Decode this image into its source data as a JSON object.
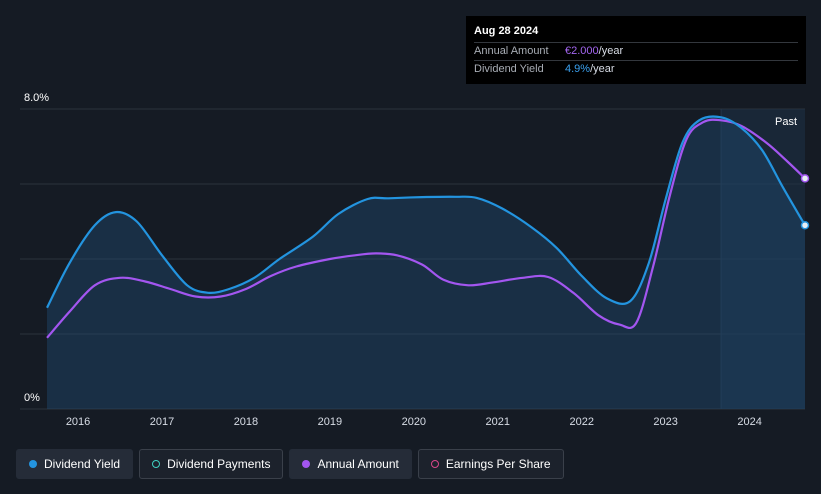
{
  "tooltip": {
    "date": "Aug 28 2024",
    "rows": [
      {
        "label": "Annual Amount",
        "value": "€2.000",
        "unit": "/year"
      },
      {
        "label": "Dividend Yield",
        "value": "4.9%",
        "unit": "/year"
      }
    ]
  },
  "legend": [
    {
      "label": "Dividend Yield",
      "marker": "filled",
      "color": "#2394df"
    },
    {
      "label": "Dividend Payments",
      "marker": "ring",
      "color": "#3fd1c1"
    },
    {
      "label": "Annual Amount",
      "marker": "filled",
      "color": "#a356f0"
    },
    {
      "label": "Earnings Per Share",
      "marker": "ring",
      "color": "#d9468a"
    }
  ],
  "chart_data": {
    "type": "line",
    "ylim": [
      0,
      8
    ],
    "y_tick_labels": [
      "8.0%",
      "0%"
    ],
    "x_tick_labels": [
      "2016",
      "2017",
      "2018",
      "2019",
      "2020",
      "2021",
      "2022",
      "2023",
      "2024"
    ],
    "x_range": [
      2015.63,
      2024.66
    ],
    "past_start": 2023.66,
    "past_label": "Past",
    "grid": true,
    "series": [
      {
        "name": "Dividend Yield",
        "color": "#2394df",
        "points": [
          [
            2015.63,
            2.7
          ],
          [
            2015.9,
            3.9
          ],
          [
            2016.2,
            4.9
          ],
          [
            2016.45,
            5.25
          ],
          [
            2016.7,
            5.0
          ],
          [
            2017.0,
            4.1
          ],
          [
            2017.3,
            3.3
          ],
          [
            2017.55,
            3.1
          ],
          [
            2017.8,
            3.2
          ],
          [
            2018.1,
            3.5
          ],
          [
            2018.4,
            4.0
          ],
          [
            2018.8,
            4.6
          ],
          [
            2019.1,
            5.2
          ],
          [
            2019.45,
            5.6
          ],
          [
            2019.7,
            5.62
          ],
          [
            2020.1,
            5.65
          ],
          [
            2020.5,
            5.66
          ],
          [
            2020.75,
            5.63
          ],
          [
            2021.05,
            5.35
          ],
          [
            2021.4,
            4.85
          ],
          [
            2021.7,
            4.3
          ],
          [
            2022.0,
            3.55
          ],
          [
            2022.3,
            2.95
          ],
          [
            2022.58,
            2.88
          ],
          [
            2022.8,
            3.9
          ],
          [
            2023.0,
            5.6
          ],
          [
            2023.2,
            7.1
          ],
          [
            2023.4,
            7.7
          ],
          [
            2023.66,
            7.78
          ],
          [
            2023.9,
            7.5
          ],
          [
            2024.15,
            6.9
          ],
          [
            2024.4,
            5.9
          ],
          [
            2024.66,
            4.9
          ]
        ]
      },
      {
        "name": "Annual Amount",
        "color": "#a356f0",
        "points": [
          [
            2015.63,
            1.9
          ],
          [
            2015.9,
            2.6
          ],
          [
            2016.2,
            3.3
          ],
          [
            2016.5,
            3.5
          ],
          [
            2016.8,
            3.4
          ],
          [
            2017.1,
            3.2
          ],
          [
            2017.4,
            3.0
          ],
          [
            2017.7,
            3.0
          ],
          [
            2018.0,
            3.2
          ],
          [
            2018.3,
            3.55
          ],
          [
            2018.6,
            3.8
          ],
          [
            2019.0,
            4.0
          ],
          [
            2019.3,
            4.1
          ],
          [
            2019.55,
            4.15
          ],
          [
            2019.8,
            4.1
          ],
          [
            2020.1,
            3.85
          ],
          [
            2020.35,
            3.45
          ],
          [
            2020.65,
            3.3
          ],
          [
            2020.95,
            3.38
          ],
          [
            2021.3,
            3.5
          ],
          [
            2021.6,
            3.52
          ],
          [
            2021.9,
            3.1
          ],
          [
            2022.2,
            2.5
          ],
          [
            2022.45,
            2.25
          ],
          [
            2022.65,
            2.3
          ],
          [
            2022.85,
            3.8
          ],
          [
            2023.05,
            5.7
          ],
          [
            2023.25,
            7.2
          ],
          [
            2023.45,
            7.65
          ],
          [
            2023.66,
            7.7
          ],
          [
            2023.9,
            7.55
          ],
          [
            2024.2,
            7.1
          ],
          [
            2024.45,
            6.6
          ],
          [
            2024.66,
            6.15
          ]
        ]
      }
    ]
  }
}
